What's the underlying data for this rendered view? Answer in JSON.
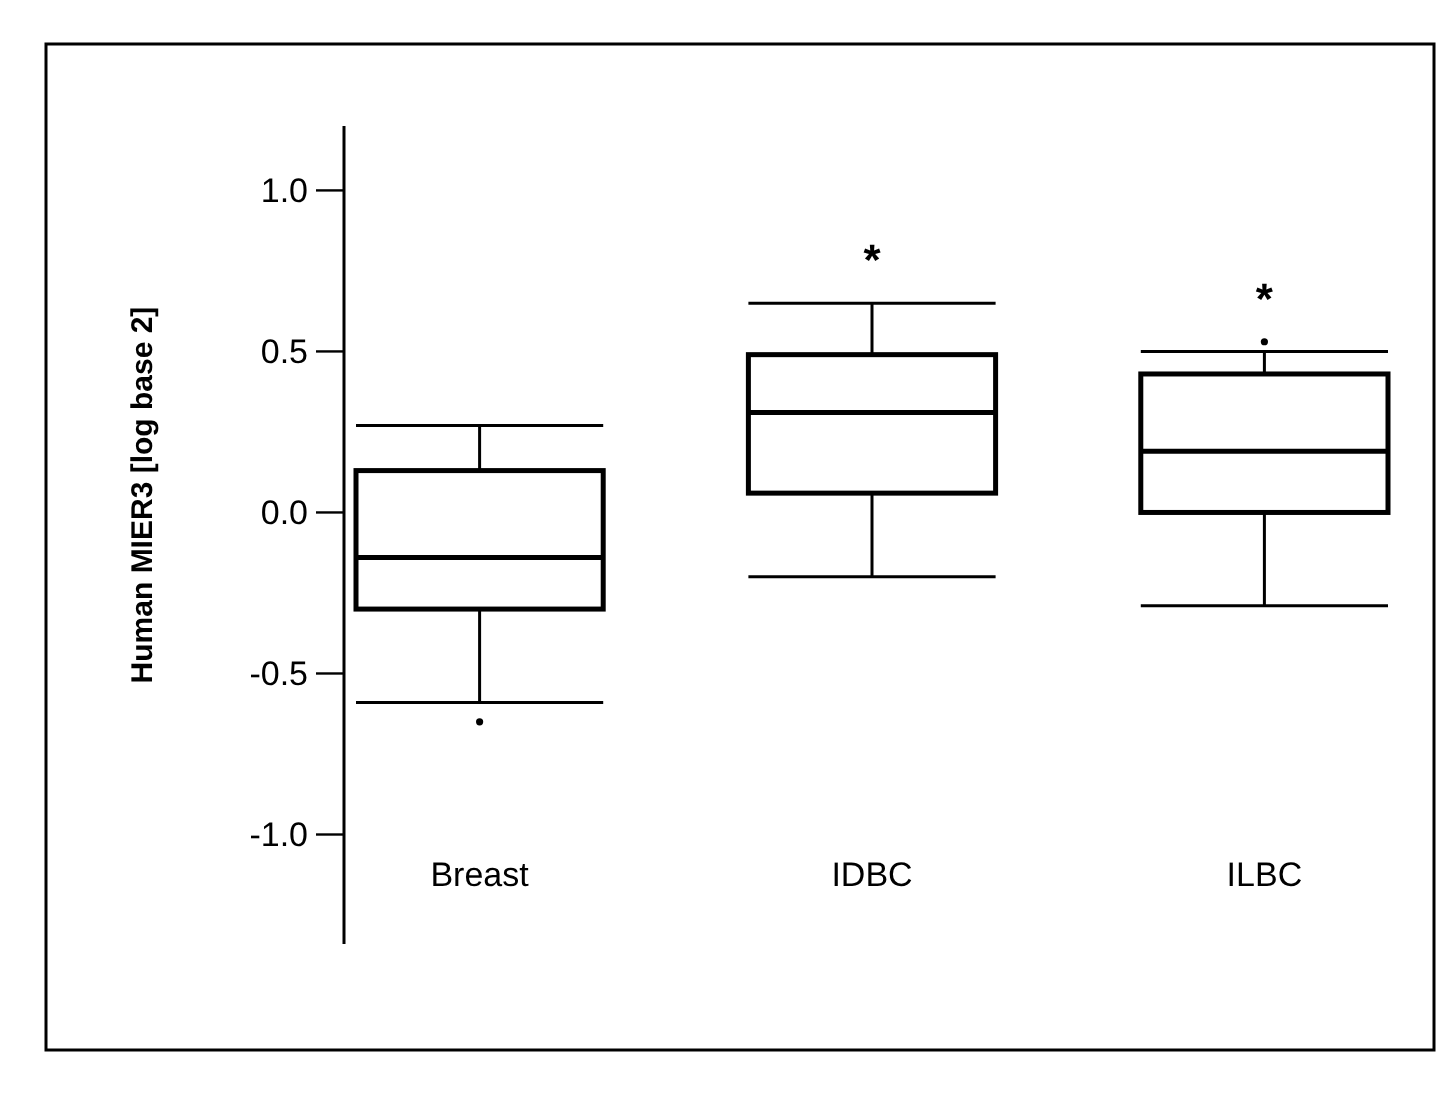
{
  "chart_data": {
    "type": "box",
    "ylabel": "Human MIER3 [log base 2]",
    "categories": [
      "Breast",
      "IDBC",
      "ILBC"
    ],
    "boxes": [
      {
        "low": -0.59,
        "q1": -0.3,
        "median": -0.14,
        "q3": 0.13,
        "high": 0.27,
        "outliers": [
          -0.65
        ]
      },
      {
        "low": -0.2,
        "q1": 0.06,
        "median": 0.31,
        "q3": 0.49,
        "high": 0.65
      },
      {
        "low": -0.29,
        "q1": 0.0,
        "median": 0.19,
        "q3": 0.43,
        "high": 0.5,
        "outliers": [
          0.53
        ]
      }
    ],
    "ylim": [
      -1.34,
      1.2
    ],
    "yticks": [
      {
        "value": -1,
        "label": "-1.0"
      },
      {
        "value": -0.5,
        "label": "-0.5"
      },
      {
        "value": 0,
        "label": "0.0"
      },
      {
        "value": 0.5,
        "label": "0.5"
      },
      {
        "value": 1,
        "label": "1.0"
      }
    ],
    "annotations": [
      "*",
      "*"
    ]
  }
}
